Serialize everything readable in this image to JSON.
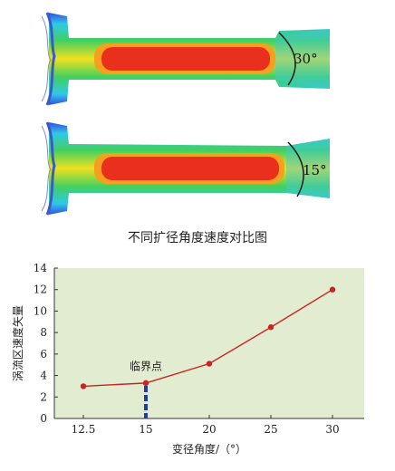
{
  "figure": {
    "caption": "不同扩径角度速度对比图",
    "panels": [
      {
        "angle_label": "30°"
      },
      {
        "angle_label": "15°"
      }
    ]
  },
  "chart_data": {
    "type": "line",
    "x": [
      12.5,
      15,
      20,
      25,
      30
    ],
    "series": [
      {
        "values": [
          3.0,
          3.3,
          5.1,
          8.5,
          12.0
        ]
      }
    ],
    "xlabel": "变径角度/（°）",
    "ylabel": "涡流区速度矢量",
    "x_ticks": [
      "12.5",
      "15",
      "20",
      "25",
      "30"
    ],
    "y_ticks": [
      "0",
      "2",
      "4",
      "6",
      "8",
      "10",
      "12",
      "14"
    ],
    "xlim": [
      12.5,
      30
    ],
    "ylim": [
      0,
      14
    ],
    "grid": false,
    "annotation": {
      "text": "临界点",
      "x": 15
    },
    "colors": {
      "background": "#e2ecd0",
      "line": "#cc2222",
      "marker": "#cc2222",
      "critical_bar": "#1f3f9a"
    }
  }
}
